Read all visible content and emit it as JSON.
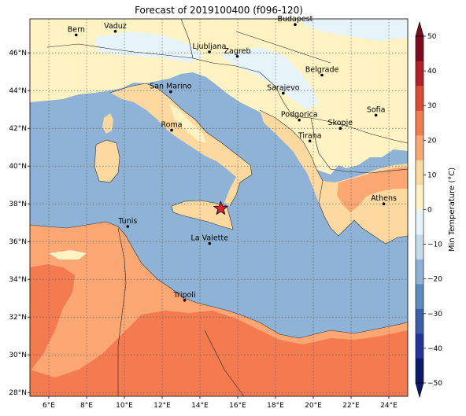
{
  "title": "Forecast of 2019100400 (f096-120)",
  "colorbar": {
    "label": "Min Temperature (°C)",
    "ticks": [
      50,
      40,
      30,
      20,
      10,
      0,
      -10,
      -20,
      -30,
      -40,
      -50
    ],
    "colors": [
      "#0d1a6b",
      "#24339a",
      "#3b5fa8",
      "#5a8cc0",
      "#8eb3d6",
      "#c3dcec",
      "#e6f3f8",
      "#fff3c4",
      "#fdd9a0",
      "#fba774",
      "#f47b4f",
      "#dd4b33",
      "#b51f25",
      "#7d0b1d"
    ],
    "extend": "both"
  },
  "axes": {
    "lat_labels": [
      "46°N",
      "44°N",
      "42°N",
      "40°N",
      "38°N",
      "36°N",
      "34°N",
      "32°N",
      "30°N",
      "28°N"
    ],
    "lon_labels": [
      "6°E",
      "8°E",
      "10°E",
      "12°E",
      "14°E",
      "16°E",
      "18°E",
      "20°E",
      "22°E",
      "24°E"
    ],
    "lon_range": [
      5,
      25
    ],
    "lat_range": [
      27.8,
      47.8
    ],
    "grid": true
  },
  "cities": [
    {
      "name": "Bern",
      "lon": 7.45,
      "lat": 46.95
    },
    {
      "name": "Vaduz",
      "lon": 9.52,
      "lat": 47.14
    },
    {
      "name": "Budapest",
      "lon": 19.04,
      "lat": 47.5
    },
    {
      "name": "Ljubljana",
      "lon": 14.5,
      "lat": 46.05
    },
    {
      "name": "Zagreb",
      "lon": 15.98,
      "lat": 45.81
    },
    {
      "name": "Belgrade",
      "lon": 20.46,
      "lat": 44.82
    },
    {
      "name": "San Marino",
      "lon": 12.45,
      "lat": 43.94
    },
    {
      "name": "Sarajevo",
      "lon": 18.41,
      "lat": 43.86
    },
    {
      "name": "Sofia",
      "lon": 23.32,
      "lat": 42.7
    },
    {
      "name": "Podgorica",
      "lon": 19.26,
      "lat": 42.44
    },
    {
      "name": "Skopje",
      "lon": 21.43,
      "lat": 42.0
    },
    {
      "name": "Roma",
      "lon": 12.5,
      "lat": 41.9
    },
    {
      "name": "Tirana",
      "lon": 19.82,
      "lat": 41.33
    },
    {
      "name": "Athens",
      "lon": 23.73,
      "lat": 38.0
    },
    {
      "name": "Tunis",
      "lon": 10.18,
      "lat": 36.8
    },
    {
      "name": "La Valette",
      "lon": 14.51,
      "lat": 35.9
    },
    {
      "name": "Tripoli",
      "lon": 13.19,
      "lat": 32.89
    }
  ],
  "marker": {
    "name": "star-marker",
    "lon": 15.1,
    "lat": 37.75,
    "color": "#e8202a"
  }
}
